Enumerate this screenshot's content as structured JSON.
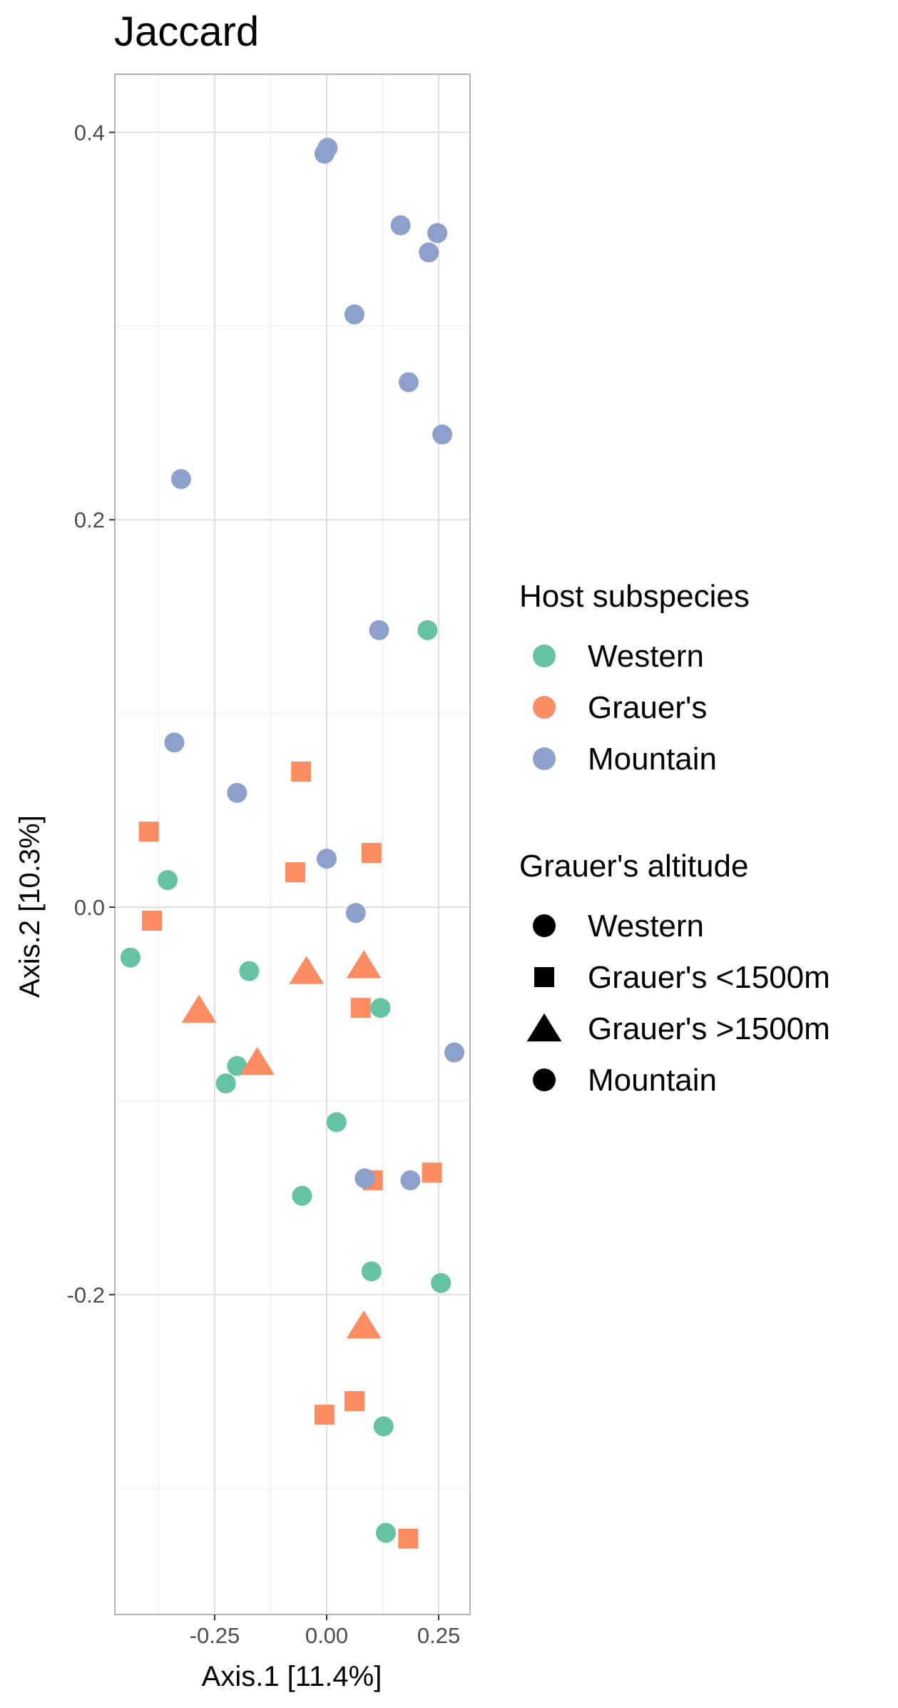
{
  "chart_data": {
    "type": "scatter",
    "title": "Jaccard",
    "xlabel": "Axis.1   [11.4%]",
    "ylabel": "Axis.2   [10.3%]",
    "xlim": [
      -0.47,
      0.32
    ],
    "ylim": [
      -0.36,
      0.43
    ],
    "x_ticks": [
      -0.25,
      0.0,
      0.25
    ],
    "x_tick_labels": [
      "-0.25",
      "0.00",
      "0.25"
    ],
    "y_ticks": [
      -0.2,
      0.0,
      0.2,
      0.4
    ],
    "y_tick_labels": [
      "-0.2",
      "0.0",
      "0.2",
      "0.4"
    ],
    "grid": true,
    "legend_placement": "right",
    "colors": {
      "Western": "#66c2a5",
      "Grauer's": "#fc8d62",
      "Mountain": "#8da0cb"
    },
    "series": [
      {
        "name": "Western",
        "subspecies": "Western",
        "altitude": "Western",
        "shape": "circle",
        "points": [
          [
            0.225,
            0.143
          ],
          [
            -0.355,
            0.014
          ],
          [
            -0.438,
            -0.026
          ],
          [
            -0.173,
            -0.033
          ],
          [
            0.12,
            -0.052
          ],
          [
            -0.2,
            -0.082
          ],
          [
            -0.225,
            -0.091
          ],
          [
            0.022,
            -0.111
          ],
          [
            -0.055,
            -0.149
          ],
          [
            0.1,
            -0.188
          ],
          [
            0.255,
            -0.194
          ],
          [
            0.127,
            -0.268
          ],
          [
            0.132,
            -0.323
          ]
        ]
      },
      {
        "name": "Grauer's <1500m",
        "subspecies": "Grauer's",
        "altitude": "Grauer's <1500m",
        "shape": "square",
        "points": [
          [
            -0.057,
            0.07
          ],
          [
            -0.397,
            0.039
          ],
          [
            0.1,
            0.028
          ],
          [
            -0.07,
            0.018
          ],
          [
            -0.39,
            -0.007
          ],
          [
            0.076,
            -0.052
          ],
          [
            0.235,
            -0.137
          ],
          [
            0.103,
            -0.141
          ],
          [
            -0.005,
            -0.262
          ],
          [
            0.062,
            -0.255
          ],
          [
            0.182,
            -0.326
          ]
        ]
      },
      {
        "name": "Grauer's >1500m",
        "subspecies": "Grauer's",
        "altitude": "Grauer's >1500m",
        "shape": "triangle",
        "points": [
          [
            -0.045,
            -0.033
          ],
          [
            0.083,
            -0.03
          ],
          [
            -0.285,
            -0.053
          ],
          [
            -0.155,
            -0.08
          ],
          [
            0.083,
            -0.216
          ]
        ]
      },
      {
        "name": "Mountain",
        "subspecies": "Mountain",
        "altitude": "Mountain",
        "shape": "circle",
        "points": [
          [
            0.002,
            0.392
          ],
          [
            -0.005,
            0.389
          ],
          [
            0.165,
            0.352
          ],
          [
            0.247,
            0.348
          ],
          [
            0.228,
            0.338
          ],
          [
            0.062,
            0.306
          ],
          [
            0.183,
            0.271
          ],
          [
            0.258,
            0.244
          ],
          [
            -0.325,
            0.221
          ],
          [
            0.117,
            0.143
          ],
          [
            -0.34,
            0.085
          ],
          [
            -0.2,
            0.059
          ],
          [
            0.0,
            0.025
          ],
          [
            0.065,
            -0.003
          ],
          [
            0.285,
            -0.075
          ],
          [
            0.085,
            -0.14
          ],
          [
            0.187,
            -0.141
          ]
        ]
      }
    ],
    "legends": [
      {
        "title": "Host subspecies",
        "entries": [
          {
            "label": "Western",
            "shape": "circle",
            "color": "#66c2a5"
          },
          {
            "label": "Grauer's",
            "shape": "circle",
            "color": "#fc8d62"
          },
          {
            "label": "Mountain",
            "shape": "circle",
            "color": "#8da0cb"
          }
        ]
      },
      {
        "title": "Grauer's altitude",
        "entries": [
          {
            "label": "Western",
            "shape": "circle",
            "color": "#000000"
          },
          {
            "label": "Grauer's <1500m",
            "shape": "square",
            "color": "#000000"
          },
          {
            "label": "Grauer's >1500m",
            "shape": "triangle",
            "color": "#000000"
          },
          {
            "label": "Mountain",
            "shape": "circle",
            "color": "#000000"
          }
        ]
      }
    ]
  }
}
